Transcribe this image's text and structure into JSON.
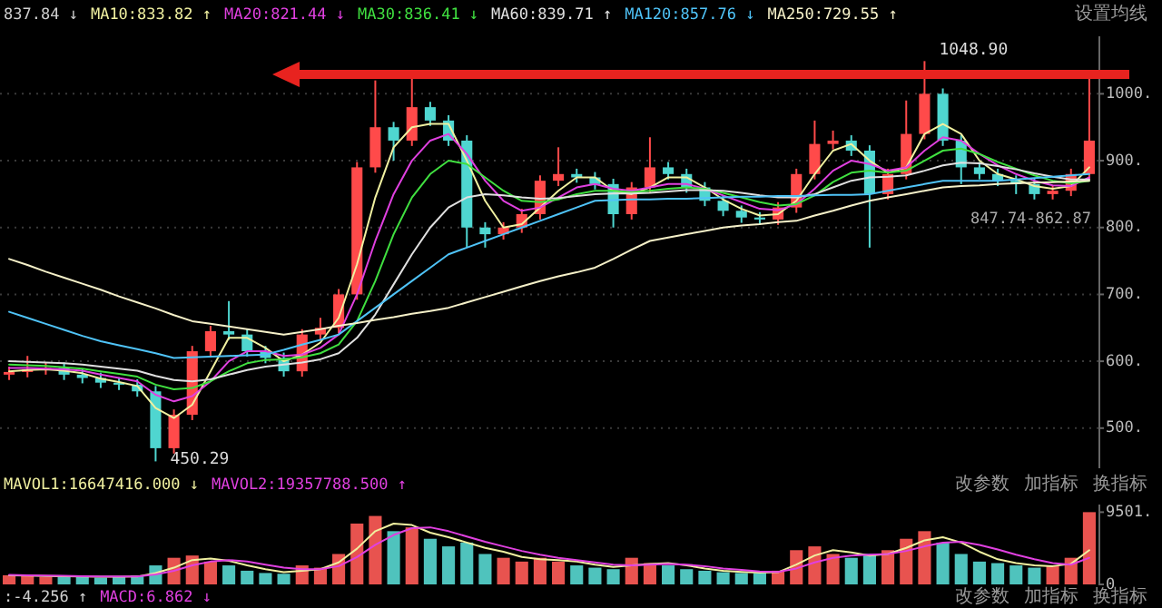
{
  "chart_data": [
    {
      "type": "candlestick",
      "categories": [
        null,
        null,
        null,
        null,
        null,
        null,
        null,
        null,
        null,
        null,
        null,
        null,
        null,
        null,
        null,
        null,
        null,
        null,
        null,
        null,
        null,
        null,
        null,
        null,
        null,
        null,
        null,
        null,
        null,
        null,
        null,
        null,
        null,
        null,
        null,
        null,
        null,
        null,
        null,
        null,
        null,
        null,
        null,
        null,
        null,
        null,
        null,
        null,
        null,
        null,
        null,
        null,
        null,
        null,
        null,
        null,
        null,
        null,
        null,
        null
      ],
      "ohlc": [
        [
          580,
          592,
          572,
          584
        ],
        [
          584,
          608,
          576,
          588
        ],
        [
          588,
          598,
          580,
          590
        ],
        [
          590,
          598,
          572,
          580
        ],
        [
          580,
          588,
          567,
          575
        ],
        [
          575,
          583,
          560,
          568
        ],
        [
          568,
          576,
          557,
          565
        ],
        [
          565,
          573,
          547,
          555
        ],
        [
          555,
          563,
          450.29,
          470
        ],
        [
          470,
          528,
          462,
          520
        ],
        [
          520,
          623,
          512,
          615
        ],
        [
          615,
          653,
          607,
          645
        ],
        [
          645,
          690,
          632,
          640
        ],
        [
          640,
          648,
          607,
          615
        ],
        [
          615,
          623,
          597,
          605
        ],
        [
          605,
          613,
          577,
          585
        ],
        [
          585,
          648,
          577,
          640
        ],
        [
          640,
          665,
          632,
          650
        ],
        [
          650,
          708,
          642,
          700
        ],
        [
          700,
          898,
          692,
          890
        ],
        [
          890,
          1020,
          882,
          950
        ],
        [
          950,
          958,
          900,
          930
        ],
        [
          930,
          1025,
          922,
          980
        ],
        [
          980,
          988,
          952,
          960
        ],
        [
          960,
          968,
          922,
          930
        ],
        [
          930,
          938,
          770,
          800
        ],
        [
          800,
          808,
          770,
          790
        ],
        [
          790,
          808,
          782,
          800
        ],
        [
          800,
          828,
          792,
          820
        ],
        [
          820,
          878,
          812,
          870
        ],
        [
          870,
          920,
          862,
          880
        ],
        [
          880,
          888,
          867,
          875
        ],
        [
          875,
          883,
          857,
          865
        ],
        [
          865,
          873,
          800,
          820
        ],
        [
          820,
          868,
          812,
          860
        ],
        [
          860,
          935,
          852,
          890
        ],
        [
          890,
          898,
          872,
          880
        ],
        [
          880,
          888,
          852,
          860
        ],
        [
          860,
          868,
          832,
          840
        ],
        [
          840,
          848,
          817,
          825
        ],
        [
          825,
          833,
          807,
          815
        ],
        [
          815,
          823,
          804,
          812
        ],
        [
          812,
          838,
          804,
          830
        ],
        [
          830,
          888,
          822,
          880
        ],
        [
          880,
          960,
          872,
          925
        ],
        [
          925,
          945,
          917,
          930
        ],
        [
          930,
          938,
          907,
          915
        ],
        [
          915,
          923,
          770,
          850
        ],
        [
          850,
          888,
          842,
          880
        ],
        [
          880,
          990,
          872,
          940
        ],
        [
          940,
          1048.9,
          932,
          1000
        ],
        [
          1000,
          1008,
          922,
          930
        ],
        [
          930,
          938,
          865,
          890
        ],
        [
          890,
          898,
          872,
          880
        ],
        [
          880,
          888,
          862,
          870
        ],
        [
          870,
          878,
          850,
          865
        ],
        [
          865,
          873,
          842,
          850
        ],
        [
          850,
          863,
          842,
          855
        ],
        [
          855,
          888,
          847,
          880
        ],
        [
          880,
          1030,
          872,
          930
        ]
      ],
      "series": [
        {
          "type": "line",
          "name": "MA10:833.82 ↑",
          "color": "#f0f0a0",
          "values": [
            585,
            587,
            588,
            586,
            582,
            574,
            569,
            563,
            530,
            515,
            535,
            585,
            635,
            635,
            620,
            600,
            610,
            628,
            665,
            745,
            845,
            920,
            950,
            955,
            955,
            900,
            840,
            800,
            805,
            830,
            855,
            875,
            875,
            855,
            850,
            860,
            875,
            875,
            860,
            842,
            828,
            818,
            820,
            840,
            880,
            915,
            925,
            900,
            882,
            890,
            940,
            955,
            940,
            900,
            880,
            872,
            862,
            858,
            862,
            890
          ]
        },
        {
          "type": "line",
          "name": "MA20:821.44 ↓",
          "color": "#e040e0",
          "values": [
            590,
            590,
            589,
            588,
            586,
            580,
            575,
            570,
            550,
            540,
            548,
            570,
            600,
            615,
            615,
            608,
            610,
            620,
            640,
            700,
            780,
            850,
            900,
            930,
            940,
            910,
            870,
            840,
            825,
            830,
            845,
            860,
            865,
            858,
            855,
            860,
            865,
            865,
            858,
            848,
            838,
            828,
            826,
            835,
            858,
            885,
            900,
            895,
            885,
            890,
            915,
            935,
            930,
            910,
            893,
            880,
            870,
            863,
            862,
            875
          ]
        },
        {
          "type": "line",
          "name": "MA30:836.41 ↓",
          "color": "#40e040",
          "values": [
            595,
            594,
            593,
            591,
            589,
            585,
            581,
            577,
            565,
            558,
            560,
            570,
            585,
            597,
            602,
            603,
            606,
            612,
            625,
            660,
            720,
            790,
            845,
            880,
            900,
            895,
            875,
            855,
            840,
            838,
            842,
            850,
            855,
            855,
            853,
            855,
            858,
            860,
            858,
            852,
            845,
            838,
            833,
            835,
            848,
            868,
            882,
            885,
            882,
            885,
            900,
            915,
            918,
            910,
            898,
            888,
            878,
            870,
            866,
            870
          ]
        },
        {
          "type": "line",
          "name": "MA60:839.71 ↑",
          "color": "#e0e0e0",
          "values": [
            600,
            599,
            598,
            597,
            595,
            592,
            589,
            586,
            578,
            572,
            570,
            573,
            580,
            587,
            592,
            595,
            598,
            603,
            612,
            635,
            670,
            715,
            760,
            800,
            830,
            845,
            850,
            848,
            845,
            843,
            844,
            847,
            850,
            851,
            851,
            852,
            854,
            856,
            856,
            855,
            852,
            848,
            845,
            845,
            850,
            860,
            870,
            875,
            876,
            878,
            885,
            893,
            897,
            896,
            892,
            887,
            881,
            876,
            872,
            872
          ]
        },
        {
          "type": "line",
          "name": "MA120:857.76 ↓",
          "color": "#4fc3f7",
          "values": [
            674,
            665,
            656,
            647,
            638,
            630,
            624,
            618,
            612,
            605,
            606,
            607,
            608,
            609,
            610,
            617,
            625,
            632,
            640,
            660,
            680,
            700,
            720,
            740,
            760,
            770,
            780,
            790,
            800,
            810,
            820,
            830,
            840,
            841,
            842,
            842,
            843,
            843,
            844,
            845,
            846,
            846,
            847,
            847,
            848,
            849,
            849,
            850,
            855,
            860,
            865,
            870,
            870,
            870,
            870,
            872,
            874,
            876,
            878,
            880
          ]
        },
        {
          "type": "line",
          "name": "MA250:729.55 ↑",
          "color": "#f5f0c8",
          "values": [
            753,
            744,
            734,
            725,
            716,
            707,
            697,
            688,
            679,
            669,
            660,
            656,
            652,
            648,
            644,
            640,
            644,
            648,
            653,
            657,
            662,
            666,
            671,
            675,
            680,
            688,
            696,
            704,
            712,
            720,
            727,
            733,
            740,
            753,
            767,
            780,
            785,
            790,
            795,
            800,
            803,
            805,
            808,
            810,
            818,
            825,
            833,
            840,
            845,
            850,
            855,
            860,
            862,
            863,
            865,
            866,
            867,
            868,
            869,
            870
          ]
        }
      ],
      "ylim": [
        440,
        1086
      ],
      "yticks": [
        {
          "value": 500,
          "label": "500."
        },
        {
          "value": 600,
          "label": "600."
        },
        {
          "value": 700,
          "label": "700."
        },
        {
          "value": 800,
          "label": "800."
        },
        {
          "value": 900,
          "label": "900."
        },
        {
          "value": 1000,
          "label": "1000."
        }
      ],
      "grid": "y",
      "legend": "top",
      "annotations": [
        "837.84 ↓",
        "450.29",
        "1048.90",
        "847.74-862.87",
        "设置均线"
      ]
    },
    {
      "type": "bar",
      "categories": [
        null,
        null,
        null,
        null,
        null,
        null,
        null,
        null,
        null,
        null,
        null,
        null,
        null,
        null,
        null,
        null,
        null,
        null,
        null,
        null,
        null,
        null,
        null,
        null,
        null,
        null,
        null,
        null,
        null,
        null,
        null,
        null,
        null,
        null,
        null,
        null,
        null,
        null,
        null,
        null,
        null,
        null,
        null,
        null,
        null,
        null,
        null,
        null,
        null,
        null,
        null,
        null,
        null,
        null,
        null,
        null,
        null,
        null,
        null,
        null
      ],
      "values": [
        1200,
        1100,
        1000,
        1100,
        1000,
        900,
        1000,
        1200,
        2500,
        3500,
        3800,
        3000,
        2500,
        1800,
        1500,
        1400,
        2500,
        2200,
        4000,
        8000,
        9000,
        7000,
        7500,
        6000,
        5000,
        5500,
        4000,
        3500,
        3000,
        3500,
        3000,
        2500,
        2200,
        2000,
        3500,
        2800,
        2500,
        2000,
        1800,
        1600,
        1500,
        1500,
        1800,
        4500,
        5000,
        4000,
        3500,
        4000,
        4500,
        6000,
        7000,
        5500,
        4000,
        3000,
        2800,
        2500,
        2200,
        2500,
        3500,
        9501
      ],
      "colors": [
        "#e8534f",
        "#e8534f",
        "#e8534f",
        "#4fc3bd",
        "#4fc3bd",
        "#4fc3bd",
        "#4fc3bd",
        "#4fc3bd",
        "#4fc3bd",
        "#e8534f",
        "#e8534f",
        "#e8534f",
        "#4fc3bd",
        "#4fc3bd",
        "#4fc3bd",
        "#4fc3bd",
        "#e8534f",
        "#e8534f",
        "#e8534f",
        "#e8534f",
        "#e8534f",
        "#4fc3bd",
        "#e8534f",
        "#4fc3bd",
        "#4fc3bd",
        "#4fc3bd",
        "#4fc3bd",
        "#e8534f",
        "#e8534f",
        "#e8534f",
        "#e8534f",
        "#4fc3bd",
        "#4fc3bd",
        "#4fc3bd",
        "#e8534f",
        "#e8534f",
        "#4fc3bd",
        "#4fc3bd",
        "#4fc3bd",
        "#4fc3bd",
        "#4fc3bd",
        "#4fc3bd",
        "#e8534f",
        "#e8534f",
        "#e8534f",
        "#e8534f",
        "#4fc3bd",
        "#4fc3bd",
        "#e8534f",
        "#e8534f",
        "#e8534f",
        "#4fc3bd",
        "#4fc3bd",
        "#4fc3bd",
        "#4fc3bd",
        "#4fc3bd",
        "#4fc3bd",
        "#e8534f",
        "#e8534f",
        "#e8534f"
      ],
      "series": [
        {
          "type": "line",
          "name": "MAVOL1:16647416.000 ↓",
          "color": "#f0f0a0",
          "values": [
            1200,
            1150,
            1100,
            1070,
            1050,
            1000,
            1000,
            1030,
            1500,
            2200,
            3200,
            3400,
            3100,
            2500,
            2000,
            1600,
            1800,
            2000,
            2900,
            4700,
            7000,
            8000,
            7800,
            6800,
            6200,
            5500,
            4800,
            4300,
            3600,
            3300,
            3200,
            3000,
            2600,
            2300,
            2500,
            2700,
            2800,
            2500,
            2100,
            1800,
            1650,
            1550,
            1600,
            2600,
            3800,
            4500,
            4200,
            3800,
            4000,
            4800,
            5800,
            6200,
            5500,
            4300,
            3300,
            2800,
            2500,
            2400,
            2700,
            4500
          ]
        },
        {
          "type": "line",
          "name": "MAVOL2:19357788.500 ↑",
          "color": "#e040e0",
          "values": [
            1250,
            1200,
            1150,
            1120,
            1080,
            1050,
            1030,
            1040,
            1300,
            1800,
            2500,
            3000,
            3200,
            3000,
            2600,
            2200,
            2000,
            2000,
            2400,
            3600,
            5200,
            6500,
            7400,
            7500,
            7000,
            6300,
            5600,
            5000,
            4400,
            3900,
            3500,
            3200,
            2900,
            2600,
            2500,
            2600,
            2700,
            2600,
            2400,
            2100,
            1900,
            1700,
            1650,
            2100,
            2900,
            3500,
            3800,
            3900,
            4000,
            4400,
            5000,
            5500,
            5600,
            5200,
            4600,
            3900,
            3300,
            2800,
            2600,
            3500
          ]
        }
      ],
      "ylim": [
        0,
        10500
      ],
      "yticks": [
        {
          "value": 0,
          "label": "0"
        },
        {
          "value": 9501,
          "label": "9501."
        }
      ],
      "legend": "top",
      "annotations": [
        "改参数",
        "加指标",
        "换指标"
      ]
    },
    {
      "type": "other",
      "annotations": [
        ":-4.256 ↑",
        "MACD:6.862 ↓",
        "改参数",
        "加指标",
        "换指标"
      ]
    }
  ]
}
